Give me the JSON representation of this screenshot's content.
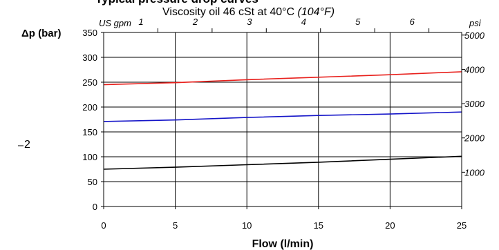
{
  "title_fragment": "Typical pressure drop curves",
  "subtitle": {
    "main": "Viscosity oil 46 cSt at 40°C ",
    "italic": "(104°F)"
  },
  "side_label": "2",
  "chart_data": {
    "type": "line",
    "x_axis": {
      "label": "Flow (l/min)",
      "range": [
        0,
        25
      ],
      "ticks": [
        "0",
        "5",
        "10",
        "15",
        "20",
        "25"
      ]
    },
    "y_axis": {
      "label": "Δp (bar)",
      "range": [
        0,
        350
      ],
      "ticks": [
        "0",
        "50",
        "100",
        "150",
        "200",
        "250",
        "300",
        "350"
      ]
    },
    "top_axis": {
      "unit": "US gpm",
      "ticks": [
        {
          "label": "1",
          "value": 1
        },
        {
          "label": "2",
          "value": 2
        },
        {
          "label": "3",
          "value": 3
        },
        {
          "label": "4",
          "value": 4
        },
        {
          "label": "5",
          "value": 5
        },
        {
          "label": "6",
          "value": 6
        }
      ]
    },
    "right_axis": {
      "unit": "psi",
      "ticks": [
        {
          "label": "1000",
          "value": 1000
        },
        {
          "label": "2000",
          "value": 2000
        },
        {
          "label": "3000",
          "value": 3000
        },
        {
          "label": "4000",
          "value": 4000
        },
        {
          "label": "5000",
          "value": 5000
        }
      ]
    },
    "grid": true,
    "series": [
      {
        "color": "#e8201c",
        "x": [
          0,
          5,
          10,
          15,
          20,
          25
        ],
        "y": [
          245,
          249,
          255,
          260,
          265,
          271
        ]
      },
      {
        "color": "#1414c8",
        "x": [
          0,
          5,
          10,
          15,
          20,
          25
        ],
        "y": [
          171,
          174,
          179,
          183,
          186,
          190
        ]
      },
      {
        "color": "#000000",
        "x": [
          0,
          5,
          10,
          15,
          20,
          25
        ],
        "y": [
          75,
          79,
          84,
          89,
          95,
          101
        ]
      }
    ]
  }
}
